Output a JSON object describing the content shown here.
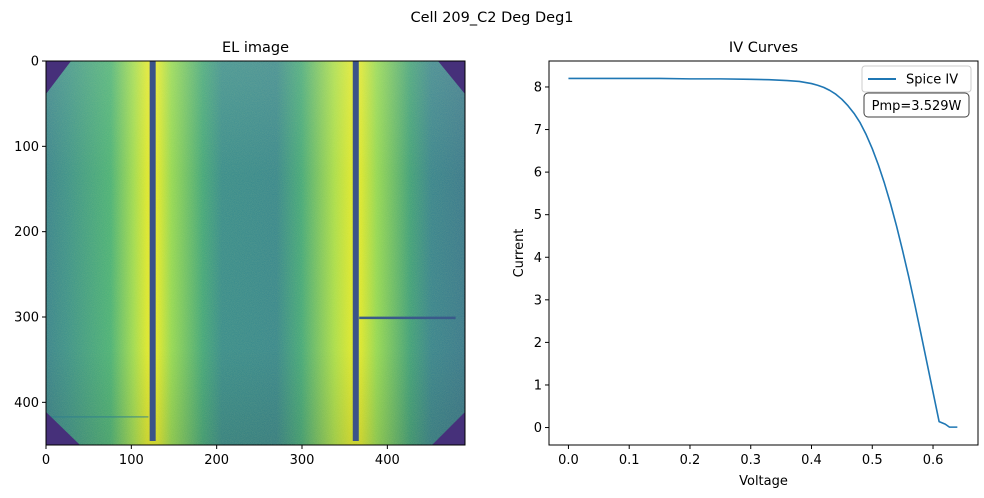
{
  "figure": {
    "suptitle": "Cell 209_C2 Deg Deg1"
  },
  "chart_data": [
    {
      "type": "heatmap",
      "title": "EL image",
      "xlim": [
        0,
        491
      ],
      "ylim": [
        450,
        0
      ],
      "xticks": [
        0,
        100,
        200,
        300,
        400
      ],
      "yticks": [
        0,
        100,
        200,
        300,
        400
      ],
      "colormap": "viridis",
      "features": {
        "dark_busbar_columns_x": [
          125,
          363
        ],
        "bright_stripes_near_busbars": true,
        "dark_corner_chamfers": true,
        "horizontal_dark_crack": {
          "y": 301,
          "x_from": 367,
          "x_to": 480
        },
        "horizontal_faint_line": {
          "y": 417,
          "x_from": 0,
          "x_to": 120
        }
      }
    },
    {
      "type": "line",
      "title": "IV Curves",
      "xlabel": "Voltage",
      "ylabel": "Current",
      "xlim": [
        -0.032,
        0.674
      ],
      "ylim": [
        -0.41,
        8.61
      ],
      "xticks": [
        "0.0",
        "0.1",
        "0.2",
        "0.3",
        "0.4",
        "0.5",
        "0.6"
      ],
      "yticks": [
        "0",
        "1",
        "2",
        "3",
        "4",
        "5",
        "6",
        "7",
        "8"
      ],
      "legend_position": "top-right",
      "annotation": "Pmp=3.529W",
      "series": [
        {
          "name": "Spice IV",
          "color": "#1f77b4",
          "x": [
            0.0,
            0.05,
            0.1,
            0.15,
            0.2,
            0.25,
            0.3,
            0.33,
            0.36,
            0.38,
            0.4,
            0.41,
            0.42,
            0.43,
            0.44,
            0.45,
            0.46,
            0.47,
            0.48,
            0.49,
            0.5,
            0.51,
            0.52,
            0.53,
            0.54,
            0.55,
            0.56,
            0.57,
            0.58,
            0.59,
            0.6,
            0.61,
            0.62,
            0.627,
            0.632,
            0.64
          ],
          "y": [
            8.2,
            8.2,
            8.2,
            8.2,
            8.19,
            8.19,
            8.18,
            8.17,
            8.15,
            8.13,
            8.08,
            8.04,
            7.99,
            7.92,
            7.83,
            7.71,
            7.56,
            7.38,
            7.16,
            6.88,
            6.55,
            6.17,
            5.74,
            5.26,
            4.73,
            4.15,
            3.54,
            2.89,
            2.21,
            1.52,
            0.83,
            0.14,
            0.08,
            0.01,
            0.01,
            0.01
          ]
        }
      ]
    }
  ]
}
